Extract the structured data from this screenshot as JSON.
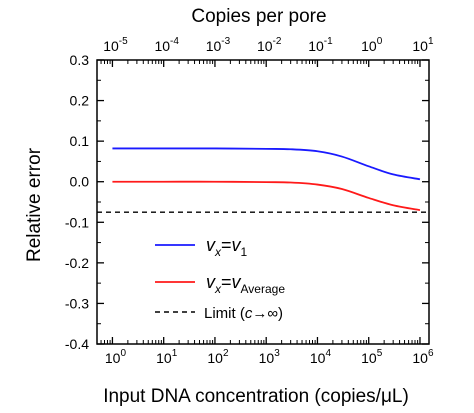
{
  "chart_data": {
    "type": "line",
    "xlabel": "Input DNA concentration (copies/μL)",
    "x2label": "Copies per pore",
    "ylabel": "Relative error",
    "x_scale": "log",
    "xlim": [
      0.5,
      1500000
    ],
    "ylim": [
      -0.4,
      0.3
    ],
    "x_ticks": [
      1,
      10,
      100,
      1000,
      10000,
      100000,
      1000000
    ],
    "x_tick_labels": [
      {
        "base": "10",
        "exp": "0"
      },
      {
        "base": "10",
        "exp": "1"
      },
      {
        "base": "10",
        "exp": "2"
      },
      {
        "base": "10",
        "exp": "3"
      },
      {
        "base": "10",
        "exp": "4"
      },
      {
        "base": "10",
        "exp": "5"
      },
      {
        "base": "10",
        "exp": "6"
      }
    ],
    "x2_scale": "log",
    "x2_ticks": [
      1e-05,
      0.0001,
      0.001,
      0.01,
      0.1,
      1,
      10
    ],
    "x2_tick_labels": [
      {
        "base": "10",
        "exp": "-5"
      },
      {
        "base": "10",
        "exp": "-4"
      },
      {
        "base": "10",
        "exp": "-3"
      },
      {
        "base": "10",
        "exp": "-2"
      },
      {
        "base": "10",
        "exp": "-1"
      },
      {
        "base": "10",
        "exp": "0"
      },
      {
        "base": "10",
        "exp": "1"
      }
    ],
    "y_ticks": [
      -0.4,
      -0.3,
      -0.2,
      -0.1,
      0.0,
      0.1,
      0.2,
      0.3
    ],
    "y_tick_labels": [
      "-0.4",
      "-0.3",
      "-0.2",
      "-0.1",
      "0.0",
      "0.1",
      "0.2",
      "0.3"
    ],
    "grid": false,
    "legend_position": "lower-left",
    "series": [
      {
        "color": "#1a1aff",
        "style": "solid",
        "legend": {
          "v": "v",
          "sub1": "x",
          "eq": "=",
          "v2": "v",
          "sub2": "1"
        },
        "x": [
          1,
          10,
          100,
          1000,
          3000,
          10000,
          30000,
          100000,
          300000,
          1000000
        ],
        "y": [
          0.082,
          0.082,
          0.082,
          0.081,
          0.08,
          0.075,
          0.062,
          0.038,
          0.018,
          0.006
        ]
      },
      {
        "color": "#ff1a1a",
        "style": "solid",
        "legend": {
          "v": "v",
          "sub1": "x",
          "eq": "=",
          "v2": "v",
          "sub2": "Average"
        },
        "x": [
          1,
          10,
          100,
          1000,
          3000,
          10000,
          30000,
          100000,
          300000,
          1000000
        ],
        "y": [
          0.0,
          0.0,
          0.0,
          -0.001,
          -0.002,
          -0.007,
          -0.018,
          -0.04,
          -0.058,
          -0.07
        ]
      },
      {
        "color": "#000000",
        "style": "dashed",
        "legend": {
          "text": "Limit (",
          "c": "c",
          "arrow": "→∞)"
        },
        "x": [
          0.5,
          1500000
        ],
        "y": [
          -0.075,
          -0.075
        ]
      }
    ]
  }
}
